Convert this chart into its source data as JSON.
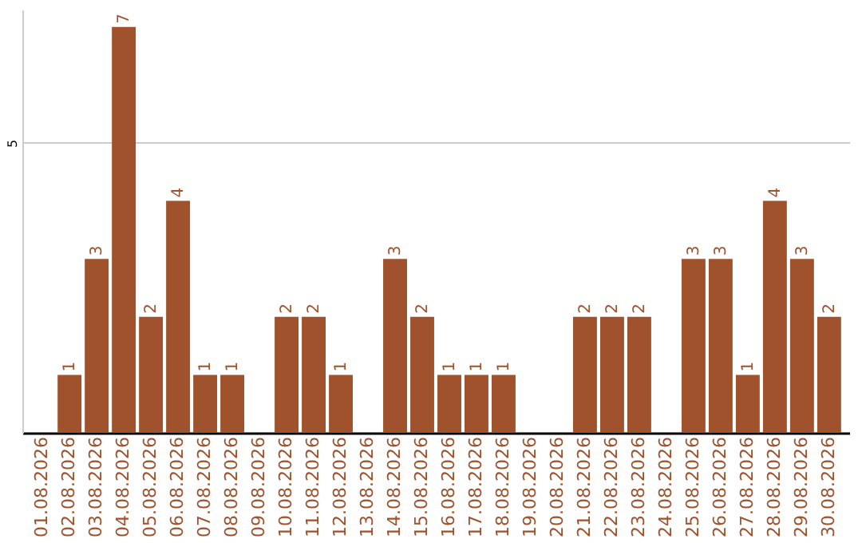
{
  "chart_data": {
    "type": "bar",
    "categories": [
      "01.08.2026",
      "02.08.2026",
      "03.08.2026",
      "04.08.2026",
      "05.08.2026",
      "06.08.2026",
      "07.08.2026",
      "08.08.2026",
      "09.08.2026",
      "10.08.2026",
      "11.08.2026",
      "12.08.2026",
      "13.08.2026",
      "14.08.2026",
      "15.08.2026",
      "16.08.2026",
      "17.08.2026",
      "18.08.2026",
      "19.08.2026",
      "20.08.2026",
      "21.08.2026",
      "22.08.2026",
      "23.08.2026",
      "24.08.2026",
      "25.08.2026",
      "26.08.2026",
      "27.08.2026",
      "28.08.2026",
      "29.08.2026",
      "30.08.2026"
    ],
    "values": [
      0,
      1,
      3,
      7,
      2,
      4,
      1,
      1,
      0,
      2,
      2,
      1,
      0,
      3,
      2,
      1,
      1,
      1,
      0,
      0,
      2,
      2,
      2,
      0,
      3,
      3,
      1,
      4,
      3,
      2
    ],
    "value_labels": [
      null,
      "1",
      "3",
      "7",
      "2",
      "4",
      "1",
      "1",
      null,
      "2",
      "2",
      "1",
      null,
      "3",
      "2",
      "1",
      "1",
      "1",
      null,
      null,
      "2",
      "2",
      "2",
      null,
      "3",
      "3",
      "1",
      "4",
      "3",
      "2"
    ],
    "color": "#a0522d",
    "ylim": [
      0,
      7.3
    ],
    "yticks": [
      5
    ],
    "grid": "y"
  }
}
